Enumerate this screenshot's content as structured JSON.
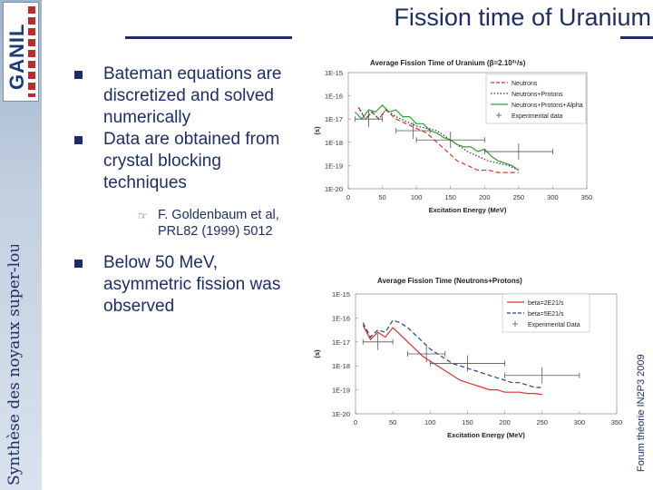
{
  "logo": {
    "text": "GANIL"
  },
  "sidebar_left_text": "Synthèse des noyaux super-lourds",
  "sidebar_right_text": "Forum théorie IN2P3 2009",
  "title": "Fission time of Uranium",
  "bullets": [
    "Bateman equations are discretized and solved numerically",
    "Data are obtained from crystal blocking techniques"
  ],
  "sub_bullet": "F. Goldenbaum et al, PRL82 (1999) 5012",
  "bullet3": "Below 50 MeV, asymmetric fission was observed",
  "chart_data": [
    {
      "type": "line",
      "title": "Average Fission Time of Uranium (β=2.10²¹/s)",
      "xlabel": "Excitation Energy (MeV)",
      "ylabel": "(s)",
      "xlim": [
        0,
        350
      ],
      "x_ticks": [
        "0",
        "50",
        "100",
        "150",
        "200",
        "250",
        "300",
        "350"
      ],
      "y_ticks": [
        "1E-15",
        "1E-16",
        "1E-17",
        "1E-18",
        "1E-19",
        "1E-20"
      ],
      "ylim_log10": [
        -20,
        -15
      ],
      "y_scale": "log",
      "legend": [
        "Neutrons",
        "Neutrons+Protons",
        "Neutrons+Protons+Alpha",
        "Experimental data"
      ],
      "legend_position": "top-right",
      "series": [
        {
          "name": "Neutrons",
          "color": "#e03030",
          "dash": "dashed",
          "x": [
            15,
            25,
            35,
            45,
            55,
            70,
            85,
            100,
            115,
            130,
            145,
            160,
            175,
            190,
            205,
            220,
            235,
            250
          ],
          "y": [
            -16.5,
            -17.0,
            -16.7,
            -17.0,
            -16.6,
            -17.0,
            -17.2,
            -17.4,
            -17.6,
            -18.0,
            -18.4,
            -18.8,
            -19.0,
            -19.2,
            -19.2,
            -19.3,
            -19.3,
            -19.3
          ]
        },
        {
          "name": "Neutrons+Protons",
          "color": "#333333",
          "dash": "dotted",
          "x": [
            15,
            25,
            35,
            45,
            55,
            70,
            85,
            100,
            115,
            130,
            145,
            160,
            175,
            190,
            205,
            220,
            235,
            250
          ],
          "y": [
            -16.5,
            -17.0,
            -16.7,
            -17.0,
            -16.6,
            -16.9,
            -17.1,
            -17.3,
            -17.4,
            -17.5,
            -17.8,
            -18.1,
            -18.4,
            -18.6,
            -18.8,
            -18.9,
            -19.0,
            -19.2
          ]
        },
        {
          "name": "Neutrons+Protons+Alpha",
          "color": "#2ca02c",
          "dash": "solid",
          "x": [
            10,
            20,
            30,
            40,
            50,
            60,
            70,
            80,
            90,
            100,
            110,
            120,
            130,
            140,
            150,
            160,
            170,
            180,
            190,
            200,
            210,
            220,
            230,
            240,
            250
          ],
          "y": [
            -16.7,
            -17.0,
            -16.6,
            -16.7,
            -16.4,
            -16.7,
            -16.6,
            -16.9,
            -16.9,
            -17.2,
            -17.2,
            -17.5,
            -17.6,
            -17.8,
            -17.9,
            -18.1,
            -18.2,
            -18.2,
            -18.4,
            -18.3,
            -18.6,
            -18.8,
            -18.9,
            -19.0,
            -19.2
          ]
        },
        {
          "name": "Experimental data",
          "color": "#555555",
          "dash": "none",
          "x": [
            30,
            95,
            150,
            250
          ],
          "y": [
            -17.0,
            -17.5,
            -17.9,
            -18.4
          ],
          "xerr": [
            20,
            25,
            50,
            50
          ]
        }
      ]
    },
    {
      "type": "line",
      "title": "Average Fission Time (Neutrons+Protons)",
      "xlabel": "Excitation Energy (MeV)",
      "ylabel": "(s)",
      "xlim": [
        0,
        350
      ],
      "x_ticks": [
        "0",
        "50",
        "100",
        "150",
        "200",
        "250",
        "300",
        "350"
      ],
      "y_ticks": [
        "1E-15",
        "1E-16",
        "1E-17",
        "1E-18",
        "1E-19",
        "1E-20"
      ],
      "ylim_log10": [
        -20,
        -15
      ],
      "y_scale": "log",
      "legend": [
        "beta=2E21/s",
        "beta=5E21/s",
        "Experimental Data"
      ],
      "legend_position": "top-right",
      "series": [
        {
          "name": "beta=2E21/s",
          "color": "#e03030",
          "dash": "solid",
          "x": [
            10,
            20,
            30,
            40,
            50,
            60,
            70,
            80,
            90,
            100,
            110,
            120,
            130,
            140,
            150,
            160,
            170,
            180,
            190,
            200,
            210,
            220,
            230,
            240,
            250
          ],
          "y": [
            -16.3,
            -16.9,
            -16.6,
            -16.8,
            -16.4,
            -16.7,
            -17.0,
            -17.3,
            -17.6,
            -17.8,
            -18.0,
            -18.2,
            -18.4,
            -18.6,
            -18.7,
            -18.8,
            -18.9,
            -19.0,
            -19.0,
            -19.1,
            -19.1,
            -19.1,
            -19.15,
            -19.15,
            -19.2
          ]
        },
        {
          "name": "beta=5E21/s",
          "color": "#1f3f8f",
          "dash": "dashed",
          "x": [
            10,
            20,
            30,
            40,
            50,
            60,
            70,
            80,
            90,
            100,
            110,
            120,
            130,
            140,
            150,
            160,
            170,
            180,
            190,
            200,
            210,
            220,
            230,
            240,
            250
          ],
          "y": [
            -16.2,
            -16.8,
            -16.5,
            -16.6,
            -16.1,
            -16.2,
            -16.4,
            -16.7,
            -17.0,
            -17.3,
            -17.5,
            -17.7,
            -17.9,
            -18.0,
            -18.1,
            -18.2,
            -18.3,
            -18.4,
            -18.5,
            -18.6,
            -18.7,
            -18.7,
            -18.8,
            -18.9,
            -18.9
          ]
        },
        {
          "name": "Experimental Data",
          "color": "#555555",
          "dash": "none",
          "x": [
            30,
            95,
            150,
            250
          ],
          "y": [
            -17.0,
            -17.5,
            -17.9,
            -18.4
          ],
          "xerr": [
            20,
            25,
            50,
            50
          ]
        }
      ]
    }
  ]
}
